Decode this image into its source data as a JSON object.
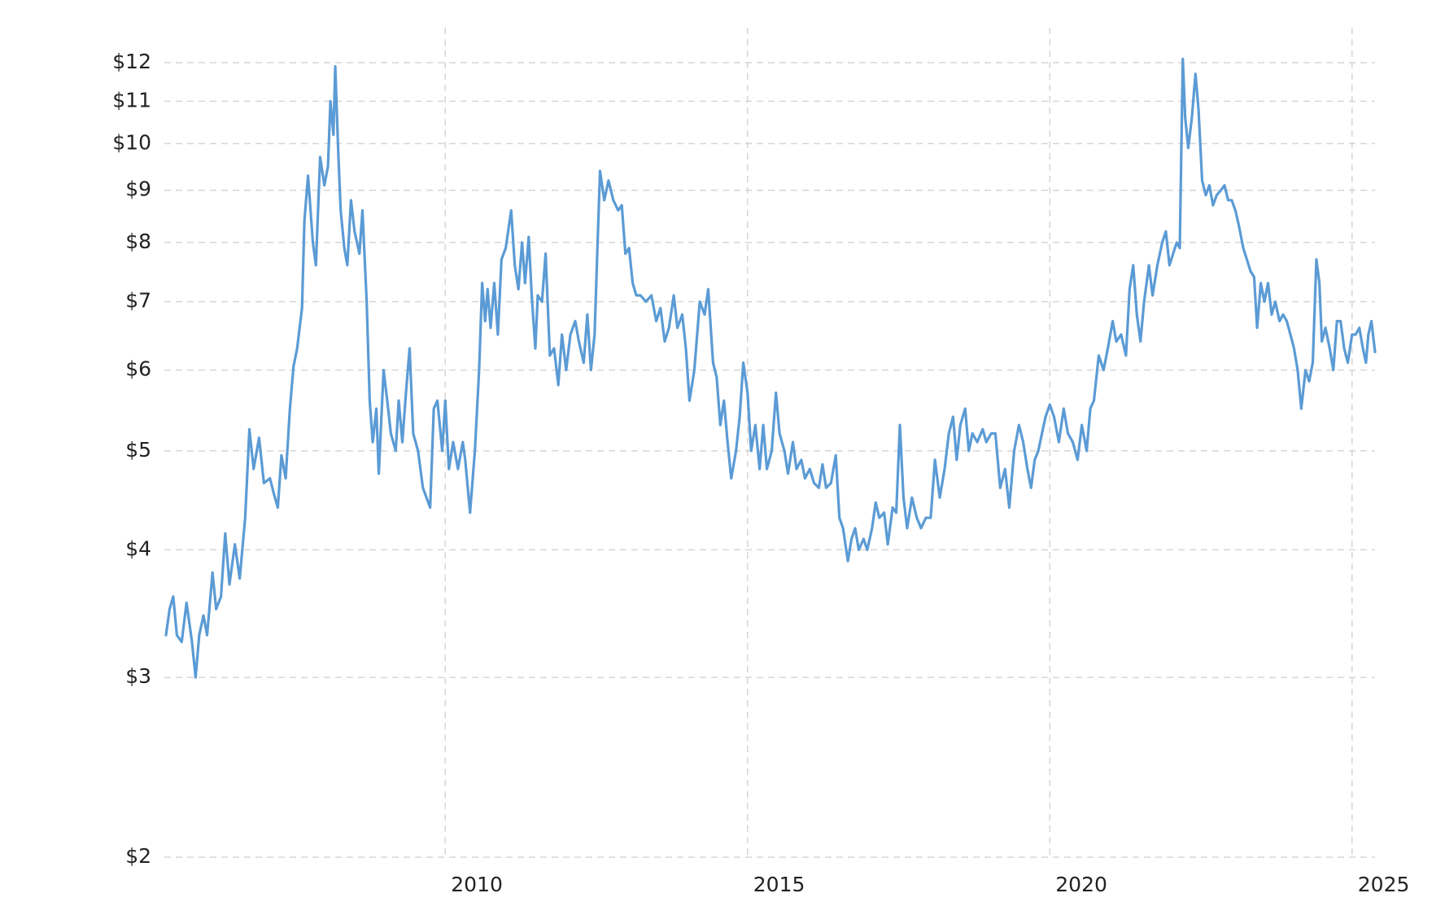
{
  "chart_data": {
    "type": "line",
    "log_scale": true,
    "grid": true,
    "color": "#5b9bd5",
    "xlim": [
      2005.38,
      2025.38
    ],
    "xticks": [
      2010,
      2015,
      2020,
      2025
    ],
    "ylim": [
      2,
      12
    ],
    "yticks": [
      {
        "value": 2,
        "label": "$2"
      },
      {
        "value": 3,
        "label": "$3"
      },
      {
        "value": 4,
        "label": "$4"
      },
      {
        "value": 5,
        "label": "$5"
      },
      {
        "value": 6,
        "label": "$6"
      },
      {
        "value": 7,
        "label": "$7"
      },
      {
        "value": 8,
        "label": "$8"
      },
      {
        "value": 9,
        "label": "$9"
      },
      {
        "value": 10,
        "label": "$10"
      },
      {
        "value": 11,
        "label": "$11"
      },
      {
        "value": 12,
        "label": "$12"
      }
    ],
    "x": [
      2005.38,
      2005.44,
      2005.5,
      2005.56,
      2005.64,
      2005.72,
      2005.81,
      2005.87,
      2005.93,
      2006.0,
      2006.06,
      2006.15,
      2006.21,
      2006.29,
      2006.36,
      2006.43,
      2006.52,
      2006.6,
      2006.69,
      2006.76,
      2006.83,
      2006.92,
      2007.0,
      2007.1,
      2007.16,
      2007.23,
      2007.29,
      2007.36,
      2007.43,
      2007.49,
      2007.55,
      2007.63,
      2007.67,
      2007.73,
      2007.81,
      2007.86,
      2007.93,
      2008.0,
      2008.06,
      2008.1,
      2008.15,
      2008.18,
      2008.23,
      2008.27,
      2008.33,
      2008.38,
      2008.44,
      2008.5,
      2008.58,
      2008.63,
      2008.7,
      2008.75,
      2008.8,
      2008.86,
      2008.9,
      2008.98,
      2009.04,
      2009.1,
      2009.18,
      2009.23,
      2009.29,
      2009.35,
      2009.41,
      2009.47,
      2009.55,
      2009.63,
      2009.75,
      2009.81,
      2009.87,
      2009.95,
      2010.0,
      2010.06,
      2010.13,
      2010.21,
      2010.29,
      2010.33,
      2010.41,
      2010.49,
      2010.56,
      2010.61,
      2010.66,
      2010.7,
      2010.75,
      2010.81,
      2010.87,
      2010.93,
      2011.0,
      2011.09,
      2011.15,
      2011.21,
      2011.27,
      2011.32,
      2011.38,
      2011.43,
      2011.49,
      2011.53,
      2011.6,
      2011.66,
      2011.73,
      2011.8,
      2011.87,
      2011.93,
      2012.0,
      2012.07,
      2012.15,
      2012.21,
      2012.29,
      2012.35,
      2012.41,
      2012.47,
      2012.52,
      2012.56,
      2012.63,
      2012.7,
      2012.78,
      2012.86,
      2012.92,
      2012.98,
      2013.04,
      2013.1,
      2013.16,
      2013.23,
      2013.32,
      2013.41,
      2013.49,
      2013.56,
      2013.63,
      2013.7,
      2013.78,
      2013.84,
      2013.92,
      2013.98,
      2014.04,
      2014.12,
      2014.21,
      2014.29,
      2014.35,
      2014.43,
      2014.49,
      2014.55,
      2014.61,
      2014.67,
      2014.73,
      2014.81,
      2014.87,
      2014.93,
      2015.0,
      2015.06,
      2015.13,
      2015.2,
      2015.26,
      2015.32,
      2015.4,
      2015.47,
      2015.53,
      2015.61,
      2015.67,
      2015.75,
      2015.81,
      2015.89,
      2015.95,
      2016.03,
      2016.1,
      2016.18,
      2016.24,
      2016.3,
      2016.38,
      2016.46,
      2016.52,
      2016.58,
      2016.66,
      2016.72,
      2016.78,
      2016.84,
      2016.92,
      2016.98,
      2017.06,
      2017.12,
      2017.18,
      2017.26,
      2017.32,
      2017.4,
      2017.46,
      2017.52,
      2017.58,
      2017.64,
      2017.72,
      2017.8,
      2017.87,
      2017.95,
      2018.03,
      2018.1,
      2018.18,
      2018.26,
      2018.33,
      2018.4,
      2018.46,
      2018.52,
      2018.6,
      2018.66,
      2018.72,
      2018.8,
      2018.89,
      2018.95,
      2019.03,
      2019.1,
      2019.18,
      2019.26,
      2019.33,
      2019.41,
      2019.49,
      2019.56,
      2019.63,
      2019.69,
      2019.75,
      2019.81,
      2019.87,
      2019.93,
      2020.0,
      2020.07,
      2020.15,
      2020.23,
      2020.3,
      2020.38,
      2020.46,
      2020.53,
      2020.61,
      2020.67,
      2020.73,
      2020.81,
      2020.89,
      2020.96,
      2021.04,
      2021.1,
      2021.18,
      2021.26,
      2021.32,
      2021.38,
      2021.44,
      2021.5,
      2021.56,
      2021.64,
      2021.7,
      2021.78,
      2021.86,
      2021.92,
      2021.98,
      2022.04,
      2022.1,
      2022.15,
      2022.2,
      2022.24,
      2022.29,
      2022.35,
      2022.41,
      2022.46,
      2022.52,
      2022.58,
      2022.64,
      2022.7,
      2022.76,
      2022.83,
      2022.89,
      2022.95,
      2023.01,
      2023.07,
      2023.13,
      2023.2,
      2023.26,
      2023.32,
      2023.38,
      2023.43,
      2023.49,
      2023.55,
      2023.61,
      2023.67,
      2023.73,
      2023.8,
      2023.86,
      2023.92,
      2023.98,
      2024.04,
      2024.1,
      2024.16,
      2024.23,
      2024.29,
      2024.35,
      2024.41,
      2024.46,
      2024.5,
      2024.56,
      2024.63,
      2024.69,
      2024.75,
      2024.81,
      2024.87,
      2024.93,
      2025.0,
      2025.06,
      2025.12,
      2025.18,
      2025.23,
      2025.27,
      2025.32,
      2025.38
    ],
    "values": [
      3.3,
      3.5,
      3.6,
      3.3,
      3.25,
      3.55,
      3.25,
      3.0,
      3.3,
      3.45,
      3.3,
      3.8,
      3.5,
      3.6,
      4.15,
      3.7,
      4.05,
      3.75,
      4.3,
      5.25,
      4.8,
      5.15,
      4.65,
      4.7,
      4.55,
      4.4,
      4.95,
      4.7,
      5.5,
      6.05,
      6.3,
      6.9,
      8.4,
      9.3,
      8.0,
      7.6,
      9.7,
      9.1,
      9.5,
      11.0,
      10.2,
      11.9,
      9.8,
      8.6,
      7.9,
      7.6,
      8.8,
      8.2,
      7.8,
      8.6,
      7.0,
      5.6,
      5.1,
      5.5,
      4.75,
      6.0,
      5.6,
      5.2,
      5.0,
      5.6,
      5.1,
      5.7,
      6.3,
      5.2,
      5.0,
      4.6,
      4.4,
      5.5,
      5.6,
      5.0,
      5.6,
      4.8,
      5.1,
      4.8,
      5.1,
      4.9,
      4.35,
      5.0,
      6.0,
      7.3,
      6.7,
      7.2,
      6.6,
      7.3,
      6.5,
      7.7,
      7.9,
      8.6,
      7.6,
      7.2,
      8.0,
      7.3,
      8.1,
      7.1,
      6.3,
      7.1,
      7.0,
      7.8,
      6.2,
      6.3,
      5.8,
      6.5,
      6.0,
      6.5,
      6.7,
      6.4,
      6.1,
      6.8,
      6.0,
      6.5,
      8.0,
      9.4,
      8.8,
      9.2,
      8.8,
      8.6,
      8.7,
      7.8,
      7.9,
      7.3,
      7.1,
      7.1,
      7.0,
      7.1,
      6.7,
      6.9,
      6.4,
      6.6,
      7.1,
      6.6,
      6.8,
      6.3,
      5.6,
      6.0,
      7.0,
      6.8,
      7.2,
      6.1,
      5.9,
      5.3,
      5.6,
      5.1,
      4.7,
      5.0,
      5.4,
      6.1,
      5.7,
      5.0,
      5.3,
      4.8,
      5.3,
      4.8,
      5.0,
      5.7,
      5.2,
      5.0,
      4.75,
      5.1,
      4.8,
      4.9,
      4.7,
      4.8,
      4.65,
      4.6,
      4.85,
      4.6,
      4.65,
      4.95,
      4.3,
      4.2,
      3.9,
      4.1,
      4.2,
      4.0,
      4.1,
      4.0,
      4.2,
      4.45,
      4.3,
      4.35,
      4.05,
      4.4,
      4.35,
      5.3,
      4.5,
      4.2,
      4.5,
      4.3,
      4.2,
      4.3,
      4.3,
      4.9,
      4.5,
      4.8,
      5.2,
      5.4,
      4.9,
      5.3,
      5.5,
      5.0,
      5.2,
      5.1,
      5.25,
      5.1,
      5.2,
      5.2,
      4.6,
      4.8,
      4.4,
      5.0,
      5.3,
      5.1,
      4.8,
      4.6,
      4.9,
      5.0,
      5.2,
      5.4,
      5.55,
      5.4,
      5.1,
      5.5,
      5.2,
      5.1,
      4.9,
      5.3,
      5.0,
      5.5,
      5.6,
      6.2,
      6.0,
      6.3,
      6.7,
      6.4,
      6.5,
      6.2,
      7.2,
      7.6,
      6.8,
      6.4,
      7.0,
      7.6,
      7.1,
      7.6,
      8.0,
      8.2,
      7.6,
      7.8,
      8.0,
      7.9,
      12.1,
      10.6,
      9.9,
      10.6,
      11.7,
      10.8,
      9.2,
      8.9,
      9.1,
      8.7,
      8.9,
      9.0,
      9.1,
      8.8,
      8.8,
      8.6,
      8.3,
      7.9,
      7.7,
      7.5,
      7.4,
      6.6,
      7.3,
      7.0,
      7.3,
      6.8,
      7.0,
      6.7,
      6.8,
      6.7,
      6.5,
      6.3,
      6.0,
      5.5,
      6.0,
      5.85,
      6.1,
      7.7,
      7.3,
      6.4,
      6.6,
      6.3,
      6.0,
      6.7,
      6.7,
      6.3,
      6.1,
      6.5,
      6.5,
      6.6,
      6.3,
      6.1,
      6.5,
      6.7,
      6.25
    ]
  }
}
